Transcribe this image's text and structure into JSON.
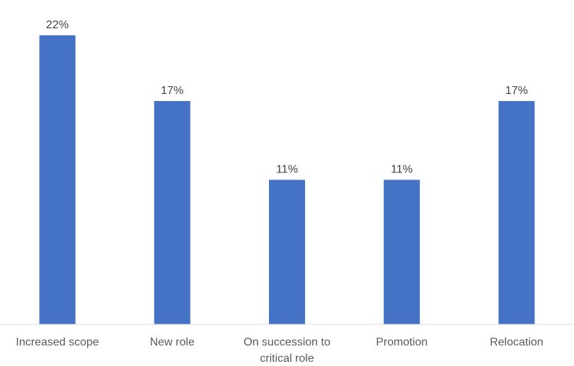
{
  "chart_data": {
    "type": "bar",
    "title": "",
    "xlabel": "",
    "ylabel": "",
    "categories": [
      [
        "Increased scope"
      ],
      [
        "New role"
      ],
      [
        "On succession to",
        "critical role"
      ],
      [
        "Promotion"
      ],
      [
        "Relocation"
      ]
    ],
    "values": [
      22,
      17,
      11,
      11,
      17
    ],
    "data_labels": [
      "22%",
      "17%",
      "11%",
      "11%",
      "17%"
    ],
    "ylim": [
      0,
      22
    ],
    "grid": false,
    "legend": "none",
    "colors": {
      "bar": "#4472C4",
      "axis": "#D9D9D9",
      "label": "#404040",
      "tick": "#595959"
    }
  }
}
